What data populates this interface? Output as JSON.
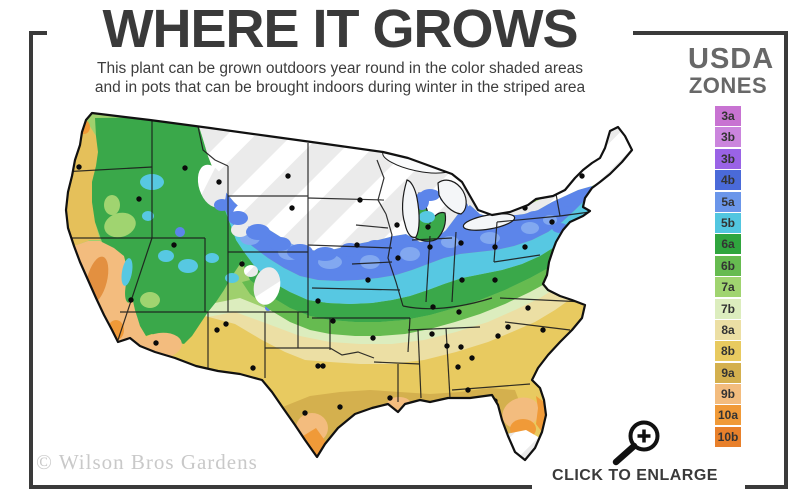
{
  "header": {
    "title": "WHERE IT GROWS",
    "subtitle_line1": "This plant can be grown outdoors year round in the color shaded areas",
    "subtitle_line2": "and in pots that can be brought indoors during winter in the striped area"
  },
  "legend": {
    "heading_line1": "USDA",
    "heading_line2": "ZONES",
    "zones": [
      {
        "label": "3a",
        "color": "#c873d2"
      },
      {
        "label": "3b",
        "color": "#cb85dd"
      },
      {
        "label": "3b",
        "color": "#9a63e6"
      },
      {
        "label": "4b",
        "color": "#4a6ad9"
      },
      {
        "label": "5a",
        "color": "#6b96ea"
      },
      {
        "label": "5b",
        "color": "#52c6e0"
      },
      {
        "label": "6a",
        "color": "#2fa53e"
      },
      {
        "label": "6b",
        "color": "#66bb50"
      },
      {
        "label": "7a",
        "color": "#a0d470"
      },
      {
        "label": "7b",
        "color": "#dcedbe"
      },
      {
        "label": "8a",
        "color": "#ecdfa4"
      },
      {
        "label": "8b",
        "color": "#e8ca60"
      },
      {
        "label": "9a",
        "color": "#d4b04e"
      },
      {
        "label": "9b",
        "color": "#f3bc7e"
      },
      {
        "label": "10a",
        "color": "#f09a38"
      },
      {
        "label": "10b",
        "color": "#e8802b"
      }
    ]
  },
  "map": {
    "description": "USDA plant hardiness zone map of the continental United States; color shaded areas show outdoor growing zones, striped area shows where pots must be brought indoors in winter",
    "city_dots": [
      [
        79,
        167
      ],
      [
        139,
        199
      ],
      [
        185,
        168
      ],
      [
        219,
        182
      ],
      [
        288,
        176
      ],
      [
        292,
        208
      ],
      [
        360,
        200
      ],
      [
        397,
        225
      ],
      [
        428,
        227
      ],
      [
        174,
        245
      ],
      [
        72,
        252
      ],
      [
        242,
        264
      ],
      [
        131,
        300
      ],
      [
        156,
        343
      ],
      [
        217,
        330
      ],
      [
        226,
        324
      ],
      [
        253,
        368
      ],
      [
        318,
        301
      ],
      [
        333,
        321
      ],
      [
        373,
        338
      ],
      [
        318,
        366
      ],
      [
        323,
        366
      ],
      [
        305,
        413
      ],
      [
        340,
        407
      ],
      [
        390,
        398
      ],
      [
        357,
        245
      ],
      [
        368,
        280
      ],
      [
        398,
        258
      ],
      [
        430,
        247
      ],
      [
        461,
        243
      ],
      [
        495,
        247
      ],
      [
        462,
        280
      ],
      [
        495,
        280
      ],
      [
        525,
        247
      ],
      [
        525,
        208
      ],
      [
        543,
        196
      ],
      [
        565,
        181
      ],
      [
        582,
        176
      ],
      [
        552,
        222
      ],
      [
        589,
        258
      ],
      [
        433,
        307
      ],
      [
        459,
        312
      ],
      [
        432,
        334
      ],
      [
        447,
        346
      ],
      [
        461,
        347
      ],
      [
        472,
        358
      ],
      [
        458,
        367
      ],
      [
        498,
        336
      ],
      [
        468,
        390
      ],
      [
        495,
        401
      ],
      [
        494,
        419
      ],
      [
        528,
        308
      ],
      [
        508,
        327
      ],
      [
        543,
        330
      ]
    ]
  },
  "footer": {
    "watermark": "© Wilson Bros Gardens",
    "enlarge_label": "CLICK TO ENLARGE"
  },
  "icons": {
    "magnifier": "zoom-in-magnifier-icon"
  }
}
